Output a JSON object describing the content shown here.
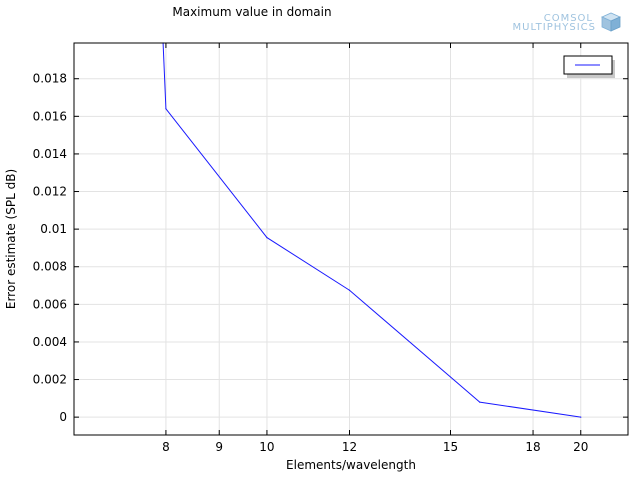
{
  "chart_data": {
    "type": "line",
    "title": "Maximum value in domain",
    "xlabel": "Elements/wavelength",
    "ylabel": "Error estimate (SPL dB)",
    "x_scale": "log",
    "xlim": [
      6.53,
      22.2
    ],
    "ylim": [
      -0.00095,
      0.0199
    ],
    "x_ticks": [
      8,
      9,
      10,
      12,
      15,
      18,
      20
    ],
    "x_tick_labels": [
      "8",
      "9",
      "10",
      "12",
      "15",
      "18",
      "20"
    ],
    "y_ticks": [
      0,
      0.002,
      0.004,
      0.006,
      0.008,
      0.01,
      0.012,
      0.014,
      0.016,
      0.018
    ],
    "y_tick_labels": [
      "0",
      "0.002",
      "0.004",
      "0.006",
      "0.008",
      "0.01",
      "0.012",
      "0.014",
      "0.016",
      "0.018"
    ],
    "grid": true,
    "legend_position": "top-right",
    "series": [
      {
        "name": "",
        "color": "#1a1aff",
        "x": [
          7.95,
          8.0,
          10.0,
          12.0,
          16.0,
          20.0
        ],
        "y": [
          0.0199,
          0.0164,
          0.00955,
          0.00675,
          0.0008,
          0.0
        ]
      }
    ]
  },
  "branding": {
    "line1": "COMSOL",
    "line2": "MULTIPHYSICS",
    "icon": "comsol-cube-icon",
    "color": "#9fc3df"
  }
}
